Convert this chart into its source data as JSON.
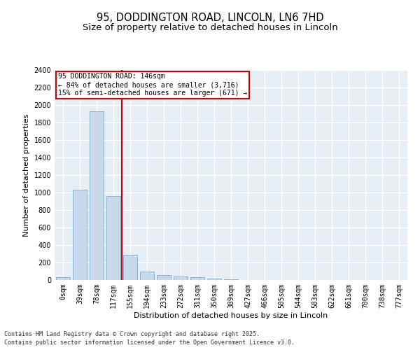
{
  "title_line1": "95, DODDINGTON ROAD, LINCOLN, LN6 7HD",
  "title_line2": "Size of property relative to detached houses in Lincoln",
  "xlabel": "Distribution of detached houses by size in Lincoln",
  "ylabel": "Number of detached properties",
  "bar_color": "#c8d8ea",
  "bar_edge_color": "#7aabcc",
  "background_color": "#e8eef5",
  "grid_color": "#ffffff",
  "annotation_box_color": "#cc0000",
  "vline_color": "#cc0000",
  "categories": [
    "0sqm",
    "39sqm",
    "78sqm",
    "117sqm",
    "155sqm",
    "194sqm",
    "233sqm",
    "272sqm",
    "311sqm",
    "350sqm",
    "389sqm",
    "427sqm",
    "466sqm",
    "505sqm",
    "544sqm",
    "583sqm",
    "622sqm",
    "661sqm",
    "700sqm",
    "738sqm",
    "777sqm"
  ],
  "values": [
    30,
    1030,
    1930,
    960,
    290,
    100,
    55,
    40,
    30,
    20,
    5,
    0,
    0,
    0,
    0,
    0,
    0,
    0,
    0,
    0,
    0
  ],
  "ylim": [
    0,
    2400
  ],
  "yticks": [
    0,
    200,
    400,
    600,
    800,
    1000,
    1200,
    1400,
    1600,
    1800,
    2000,
    2200,
    2400
  ],
  "vline_x": 3.5,
  "annotation_text_line1": "95 DODDINGTON ROAD: 146sqm",
  "annotation_text_line2": "← 84% of detached houses are smaller (3,716)",
  "annotation_text_line3": "15% of semi-detached houses are larger (671) →",
  "footer_line1": "Contains HM Land Registry data © Crown copyright and database right 2025.",
  "footer_line2": "Contains public sector information licensed under the Open Government Licence v3.0.",
  "title_fontsize": 10.5,
  "subtitle_fontsize": 9.5,
  "tick_fontsize": 7,
  "ylabel_fontsize": 8,
  "xlabel_fontsize": 8,
  "annotation_fontsize": 7,
  "footer_fontsize": 6
}
